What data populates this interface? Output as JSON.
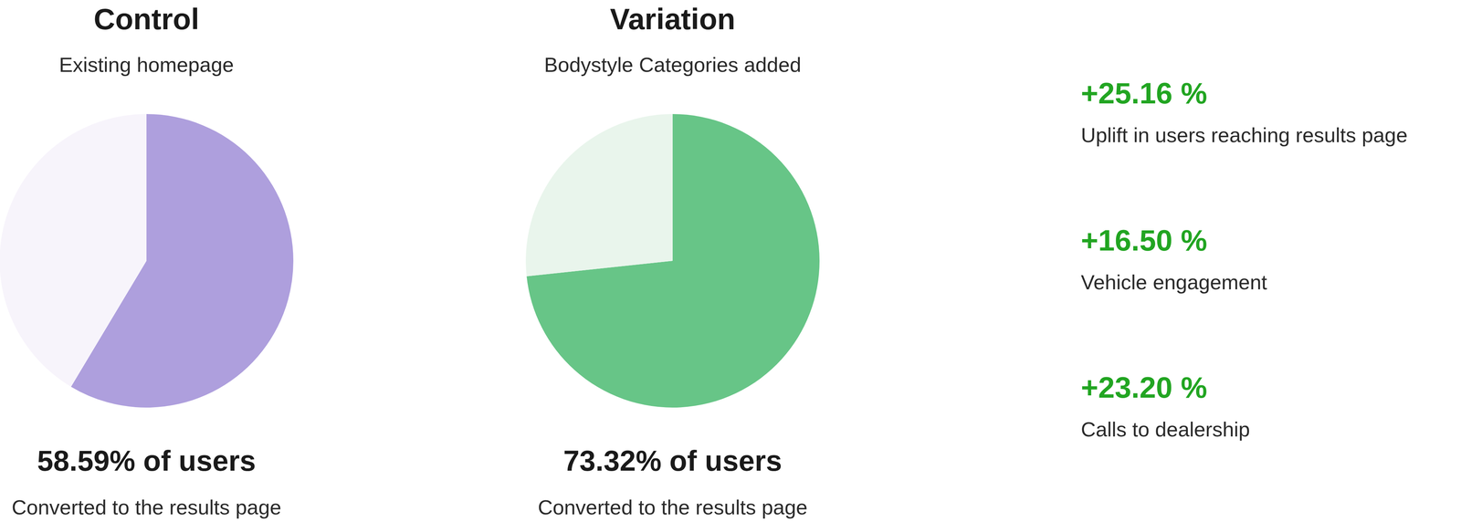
{
  "chart_data": [
    {
      "type": "pie",
      "title": "Control",
      "subtitle": "Existing homepage",
      "categories": [
        null,
        null
      ],
      "values": [
        58.59,
        41.41
      ],
      "colors": [
        "#ae9fdd",
        "#f7f4fb"
      ],
      "annotations": [
        "58.59% of users",
        "Converted to the results page"
      ]
    },
    {
      "type": "pie",
      "title": "Variation",
      "subtitle": "Bodystyle Categories added",
      "categories": [
        null,
        null
      ],
      "values": [
        73.32,
        26.68
      ],
      "colors": [
        "#67c587",
        "#e9f5ec"
      ],
      "annotations": [
        "73.32% of users",
        "Converted to the results page"
      ]
    }
  ],
  "stats": [
    {
      "value_label": "+25.16 %",
      "label": "Uplift in users reaching results page"
    },
    {
      "value_label": "+16.50 %",
      "label": "Vehicle engagement"
    },
    {
      "value_label": "+23.20 %",
      "label": "Calls to dealership"
    }
  ]
}
